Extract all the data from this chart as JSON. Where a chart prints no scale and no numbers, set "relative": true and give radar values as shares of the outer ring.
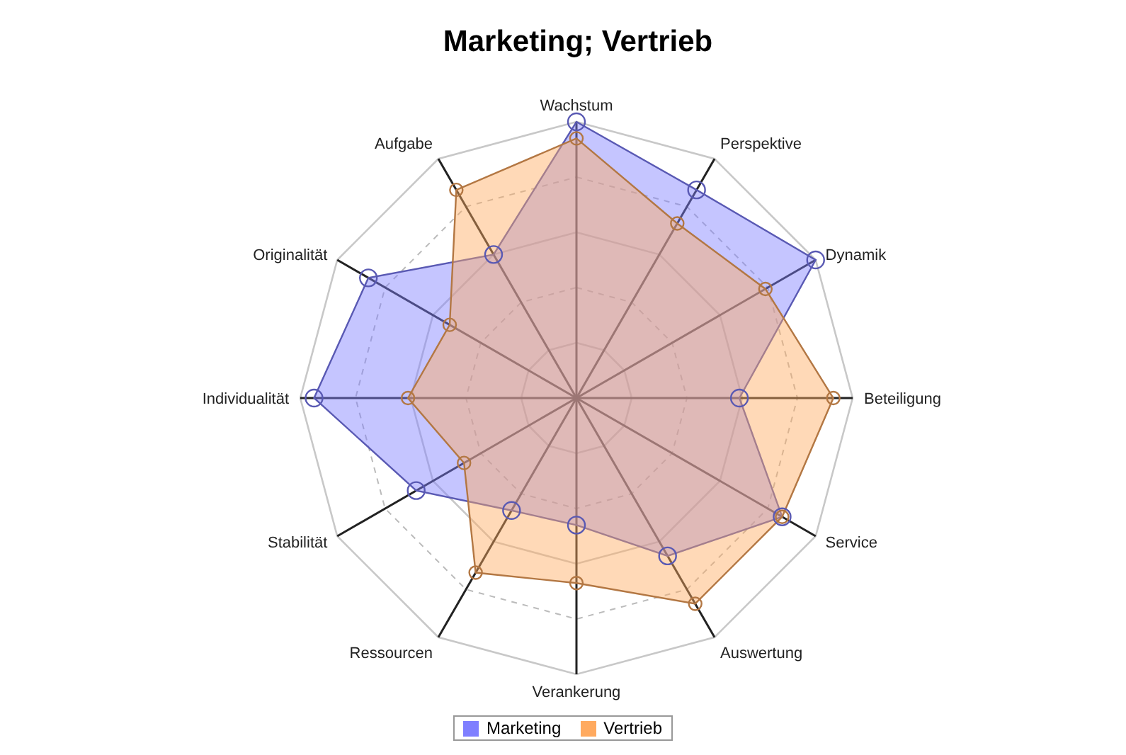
{
  "chart_data": {
    "type": "radar",
    "title": "Marketing; Vertrieb",
    "relative": true,
    "grid": true,
    "legend": "bottom",
    "marker": "circle",
    "categories": [
      "Wachstum",
      "Perspektive",
      "Dynamik",
      "Beteiligung",
      "Service",
      "Auswertung",
      "Verankerung",
      "Ressourcen",
      "Stabilität",
      "Individualität",
      "Originalität",
      "Aufgabe"
    ],
    "series": [
      {
        "name": "Marketing",
        "color": "#7f7fff",
        "values": [
          1.0,
          0.87,
          1.0,
          0.59,
          0.86,
          0.66,
          0.46,
          0.47,
          0.67,
          0.95,
          0.87,
          0.6
        ]
      },
      {
        "name": "Vertrieb",
        "color": "#ffaa5f",
        "values": [
          0.94,
          0.73,
          0.79,
          0.93,
          0.86,
          0.86,
          0.67,
          0.73,
          0.47,
          0.61,
          0.53,
          0.87
        ]
      }
    ]
  }
}
